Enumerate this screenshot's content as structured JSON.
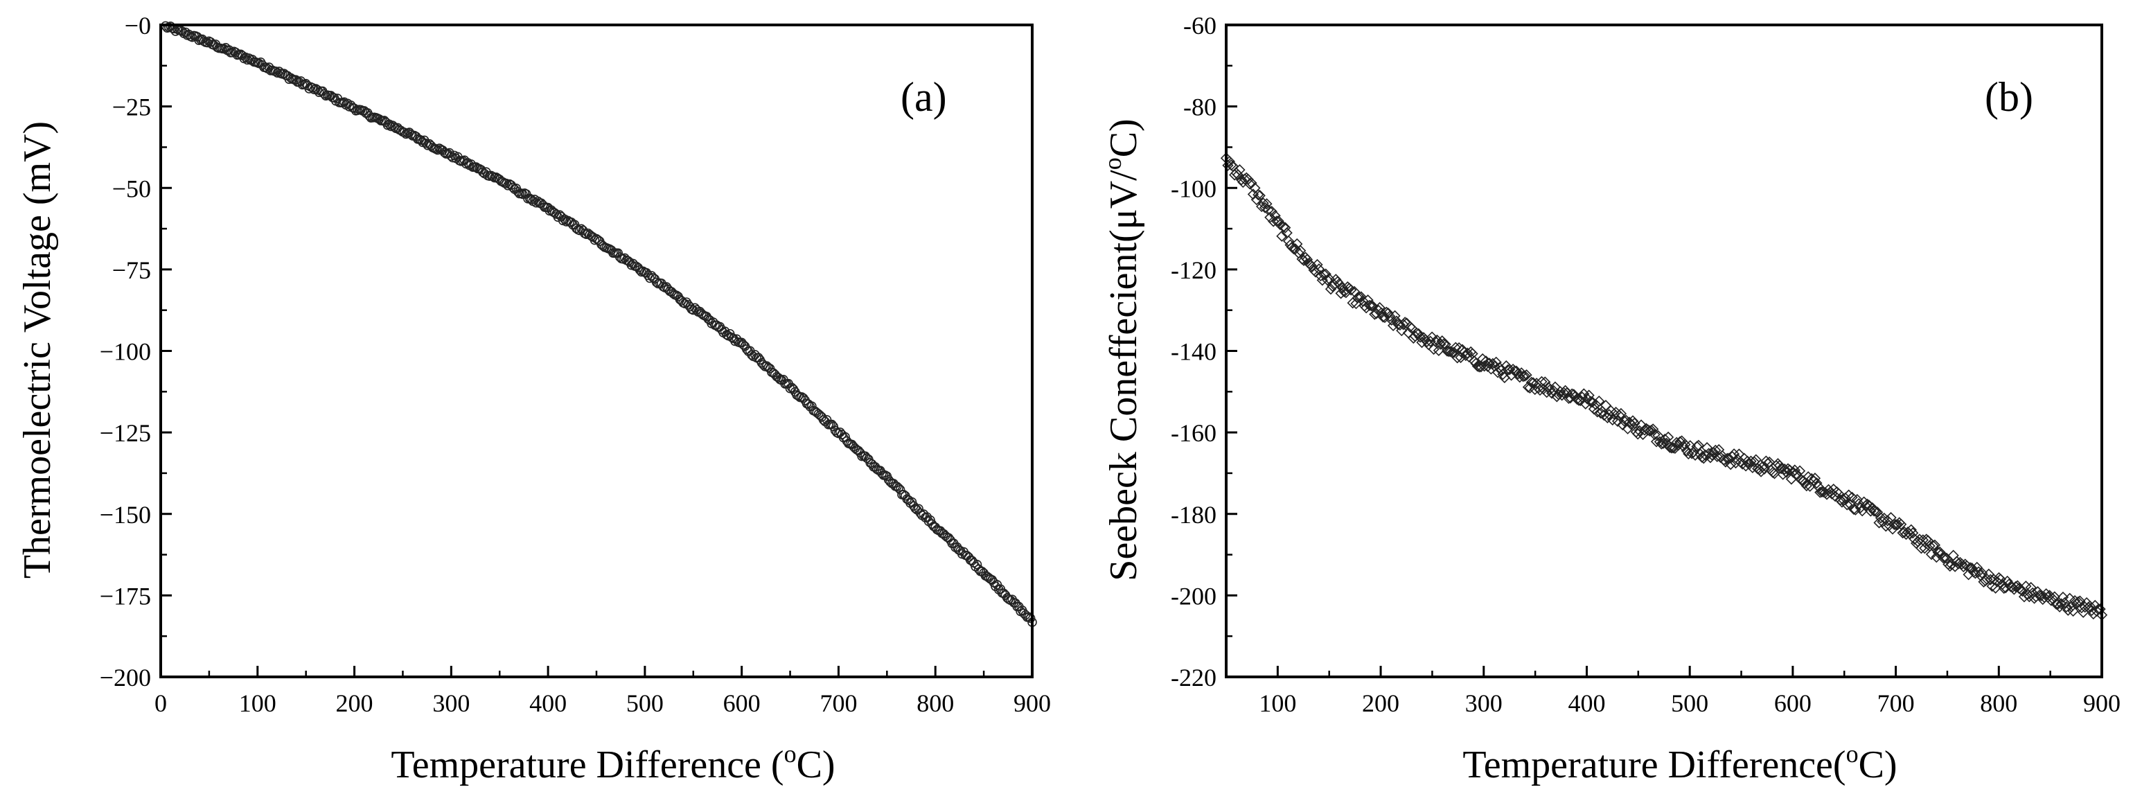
{
  "colors": {
    "axis": "#000000",
    "marker": "#222222",
    "background": "#ffffff"
  },
  "chart_data": [
    {
      "type": "scatter",
      "panel_label": "(a)",
      "xlabel": "Temperature Difference (",
      "xlabel_sup": "o",
      "xlabel_tail": "C)",
      "ylabel": "Thermoelectric Voltage (mV)",
      "xlim": [
        0,
        900
      ],
      "ylim": [
        -200,
        0
      ],
      "xticks": [
        0,
        100,
        200,
        300,
        400,
        500,
        600,
        700,
        800,
        900
      ],
      "yticks": [
        0,
        -25,
        -50,
        -75,
        -100,
        -125,
        -150,
        -175,
        -200
      ],
      "ytick_labels": [
        "−0",
        "−25",
        "−50",
        "−75",
        "−100",
        "−125",
        "−150",
        "−175",
        "−200"
      ],
      "series": [
        {
          "name": "Thermoelectric Voltage",
          "marker": "circle",
          "x": [
            5,
            25,
            50,
            75,
            100,
            150,
            200,
            250,
            300,
            350,
            400,
            450,
            500,
            550,
            600,
            650,
            700,
            750,
            800,
            850,
            900
          ],
          "y": [
            -0.5,
            -2.5,
            -5.5,
            -8.5,
            -11.5,
            -18.5,
            -25.5,
            -32.5,
            -40,
            -47.5,
            -56.5,
            -66,
            -76,
            -87,
            -98,
            -111,
            -125,
            -139,
            -154,
            -168,
            -183
          ]
        }
      ]
    },
    {
      "type": "scatter",
      "panel_label": "(b)",
      "xlabel": "Temperature Difference(",
      "xlabel_sup": "o",
      "xlabel_tail": "C)",
      "ylabel": "Seebeck Coneffecient(μV/",
      "ylabel_sup": "o",
      "ylabel_tail": "C)",
      "xlim": [
        50,
        900
      ],
      "ylim": [
        -220,
        -60
      ],
      "xticks": [
        100,
        200,
        300,
        400,
        500,
        600,
        700,
        800,
        900
      ],
      "yticks": [
        -60,
        -80,
        -100,
        -120,
        -140,
        -160,
        -180,
        -200,
        -220
      ],
      "ytick_labels": [
        "-60",
        "-80",
        "-100",
        "-120",
        "-140",
        "-160",
        "-180",
        "-200",
        "-220"
      ],
      "series": [
        {
          "name": "Seebeck Coefficient",
          "marker": "diamond",
          "x": [
            50,
            75,
            100,
            125,
            150,
            200,
            250,
            300,
            350,
            400,
            450,
            500,
            550,
            600,
            650,
            700,
            750,
            800,
            850,
            900
          ],
          "y": [
            -93,
            -100,
            -109,
            -117,
            -123,
            -131,
            -138,
            -143,
            -148,
            -152,
            -159,
            -164,
            -167,
            -170,
            -176,
            -183,
            -191,
            -197,
            -201,
            -204
          ]
        }
      ]
    }
  ]
}
